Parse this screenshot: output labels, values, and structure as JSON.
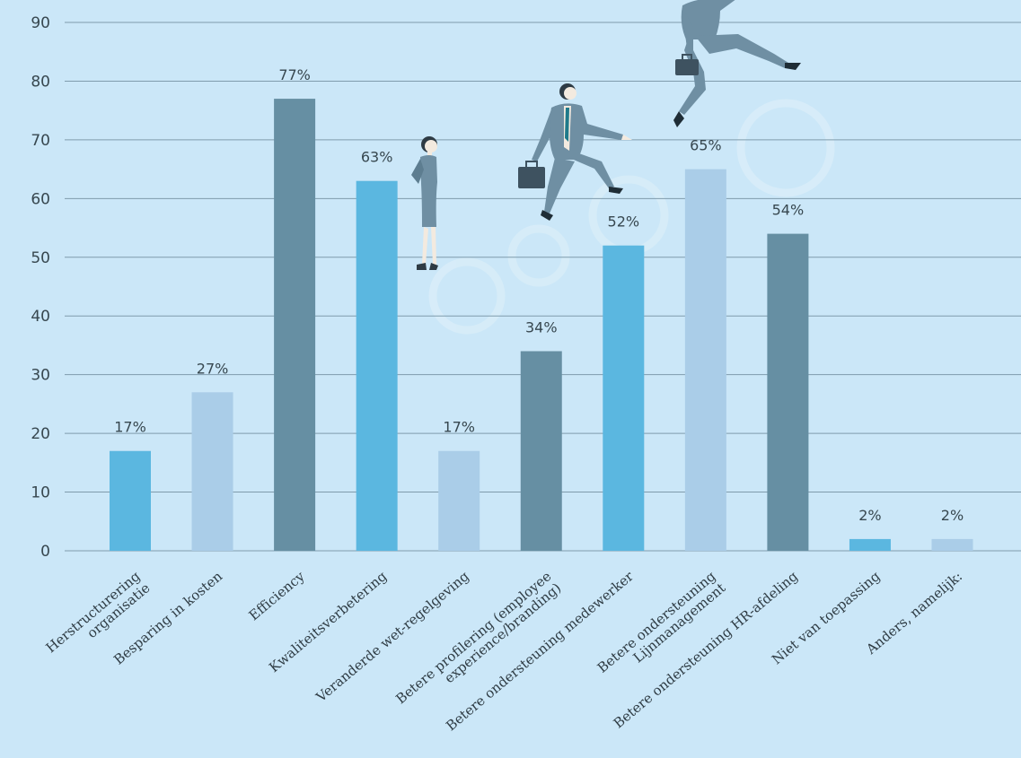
{
  "chart_data": {
    "type": "bar",
    "categories": [
      [
        "Herstructurering",
        "organisatie"
      ],
      [
        "Besparing in kosten"
      ],
      [
        "Efficiency"
      ],
      [
        "Kwaliteitsverbetering"
      ],
      [
        "Veranderde wet-regelgeving"
      ],
      [
        "Betere profilering (employee",
        "experience/branding)"
      ],
      [
        "Betere ondersteuning medewerker"
      ],
      [
        "Betere ondersteuning",
        "Lijnmanagement"
      ],
      [
        "Betere ondersteuning HR-afdeling"
      ],
      [
        "Niet van toepassing"
      ],
      [
        "Anders, namelijk:"
      ]
    ],
    "values": [
      17,
      27,
      77,
      63,
      17,
      34,
      52,
      65,
      54,
      2,
      2
    ],
    "data_labels": [
      "17%",
      "27%",
      "77%",
      "63%",
      "17%",
      "34%",
      "52%",
      "65%",
      "54%",
      "2%",
      "2%"
    ],
    "bar_colors": [
      "#5bb7e0",
      "#aacde8",
      "#668fa3",
      "#5bb7e0",
      "#aacde8",
      "#668fa3",
      "#5bb7e0",
      "#aacde8",
      "#668fa3",
      "#5bb7e0",
      "#aacde8"
    ],
    "y_ticks": [
      0,
      10,
      20,
      30,
      40,
      50,
      60,
      70,
      80,
      90
    ],
    "ylim": [
      0,
      90
    ],
    "grid": true,
    "title": "",
    "xlabel": "",
    "ylabel": ""
  },
  "colors": {
    "background": "#cbe7f8",
    "gridline": "#7f9bac",
    "suit": "#6f8fa3",
    "suit_dark": "#3e5260",
    "skin": "#f3eadf",
    "hair": "#2e3b44",
    "tie": "#1f7a8a"
  },
  "decorations": [
    "businesswoman-figure",
    "businessman-climbing-figure",
    "businessman-leaping-figure",
    "briefcase-icon"
  ]
}
